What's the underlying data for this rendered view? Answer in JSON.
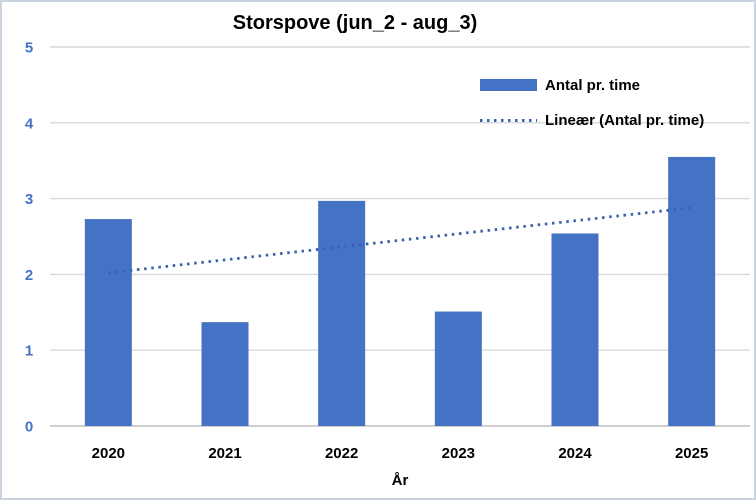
{
  "chart_data": {
    "type": "bar",
    "title": "Storspove (jun_2 - aug_3)",
    "categories": [
      "2020",
      "2021",
      "2022",
      "2023",
      "2024",
      "2025"
    ],
    "series": [
      {
        "name": "Antal pr. time",
        "values": [
          2.73,
          1.37,
          2.97,
          1.51,
          2.54,
          3.55
        ]
      }
    ],
    "trendline": {
      "name": "Lineær (Antal pr. time)",
      "style": "dotted",
      "start_value": 2.02,
      "end_value": 2.88
    },
    "xlabel": "År",
    "ylabel": "",
    "ylim": [
      0,
      5
    ],
    "yticks": [
      0,
      1,
      2,
      3,
      4,
      5
    ],
    "grid": true,
    "legend_position": "top-right",
    "colors": {
      "bar": "#4472C4",
      "trendline": "#3B62AD",
      "ytick_labels": "#4472C4",
      "xtick_labels": "#000000",
      "title": "#000000",
      "gridline": "#D9D9D9",
      "axis_line": "#BFBFBF",
      "chart_border": "#CBD3DF"
    }
  }
}
